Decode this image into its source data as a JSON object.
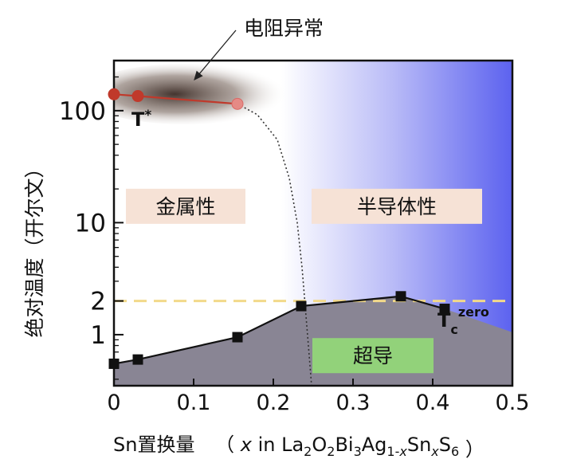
{
  "chart_data": {
    "type": "phase-diagram",
    "xlabel": {
      "prefix": "Sn置换量",
      "open_paren": "（",
      "x": "x",
      "in": " in ",
      "formula": [
        {
          "t": "La"
        },
        {
          "t": "2",
          "sub": true
        },
        {
          "t": "O"
        },
        {
          "t": "2",
          "sub": true
        },
        {
          "t": "Bi"
        },
        {
          "t": "3",
          "sub": true
        },
        {
          "t": "Ag"
        },
        {
          "t": "1-",
          "sub": true
        },
        {
          "t": "x",
          "sub": true,
          "italic": true
        },
        {
          "t": "Sn"
        },
        {
          "t": "x",
          "sub": true,
          "italic": true
        },
        {
          "t": "S"
        },
        {
          "t": "6",
          "sub": true
        }
      ],
      "close_paren": "）"
    },
    "ylabel": "绝对温度（开尔文）",
    "xlim": [
      0,
      0.5
    ],
    "ylim": [
      0.35,
      280
    ],
    "y_scale": "log",
    "x_ticks": [
      {
        "value": 0,
        "label": "0"
      },
      {
        "value": 0.1,
        "label": "0.1"
      },
      {
        "value": 0.2,
        "label": "0.2"
      },
      {
        "value": 0.3,
        "label": "0.3"
      },
      {
        "value": 0.4,
        "label": "0.4"
      },
      {
        "value": 0.5,
        "label": "0.5"
      }
    ],
    "y_ticks": [
      {
        "value": 1,
        "label": "1"
      },
      {
        "value": 2,
        "label": "2"
      },
      {
        "value": 10,
        "label": "10"
      },
      {
        "value": 100,
        "label": "100"
      }
    ],
    "series": [
      {
        "name": "T*",
        "label": "T",
        "label_sup": "*",
        "color": "#c0392b",
        "x": [
          0.0,
          0.03,
          0.155
        ],
        "y": [
          140,
          135,
          115
        ]
      },
      {
        "name": "Tc zero",
        "label": "T",
        "label_sub": "c",
        "label_sup": "zero",
        "color": "#111111",
        "x": [
          0.0,
          0.03,
          0.155,
          0.235,
          0.36,
          0.415
        ],
        "y": [
          0.55,
          0.6,
          0.95,
          1.8,
          2.2,
          1.7
        ]
      }
    ],
    "superconducting_fill_edge": {
      "x": 0.5,
      "y": 1.05
    },
    "reference_line": {
      "y": 2,
      "color": "#f2d98a",
      "style": "dashed"
    },
    "crossover_curve": {
      "style": "dotted",
      "x": [
        0.155,
        0.18,
        0.205,
        0.22,
        0.23,
        0.236,
        0.24,
        0.244,
        0.248
      ],
      "y": [
        115,
        92,
        55,
        25,
        10,
        4,
        1.8,
        0.8,
        0.35
      ]
    },
    "regions": [
      {
        "label": "金属性",
        "box_color": "#f6e2d6",
        "anchor": {
          "x": 0.09,
          "y": 14
        }
      },
      {
        "label": "半导体性",
        "box_color": "#f6e2d6",
        "anchor": {
          "x": 0.355,
          "y": 14
        }
      },
      {
        "label": "超导",
        "box_color": "#92d27a",
        "anchor": {
          "x": 0.325,
          "y": 0.65
        }
      }
    ],
    "annotation": {
      "label": "电阻异常"
    },
    "colors": {
      "metal": "#ffffff",
      "semiconductor": "#5c62ef",
      "superconductor": "#898594",
      "anomaly_shade": "#3a2a24"
    }
  }
}
